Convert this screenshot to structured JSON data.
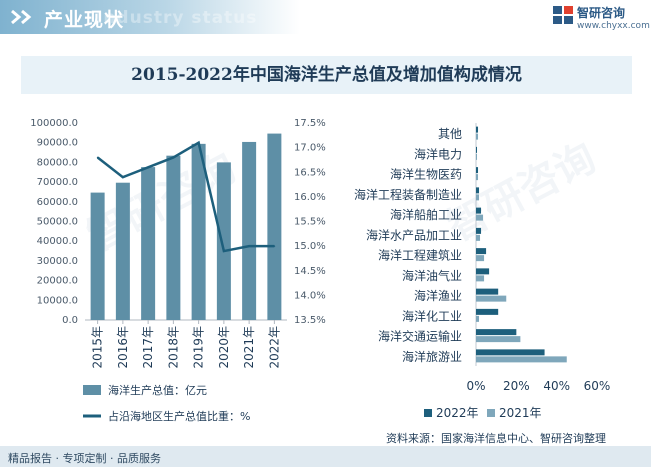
{
  "header": {
    "title": "产业现状",
    "ghost": "Industry status"
  },
  "brand": {
    "name": "智研咨询",
    "url": "www.chyxx.com"
  },
  "title": "2015-2022年中国海洋生产总值及增加值构成情况",
  "source": "资料来源：国家海洋信息中心、智研咨询整理",
  "footer": "精品报告 · 专项定制 · 品质服务",
  "watermark": "智研咨询",
  "colors": {
    "bar": "#5e8fa6",
    "line": "#1d5f7c",
    "series2022": "#1d5f7c",
    "series2021": "#7fa7bb"
  },
  "chart_data": [
    {
      "type": "bar+line",
      "categories": [
        "2015年",
        "2016年",
        "2017年",
        "2018年",
        "2019年",
        "2020年",
        "2021年",
        "2022年"
      ],
      "series": [
        {
          "name": "海洋生产总值：亿元",
          "type": "bar",
          "axis": "left",
          "values": [
            64669,
            69694,
            77611,
            83415,
            89415,
            80010,
            90385,
            94628
          ]
        },
        {
          "name": "占沿海地区生产总值比重：%",
          "type": "line",
          "axis": "right",
          "values": [
            16.8,
            16.4,
            16.6,
            16.8,
            17.1,
            14.9,
            15.0,
            15.0
          ]
        }
      ],
      "y_left": {
        "min": 0,
        "max": 100000,
        "ticks": [
          "0.0",
          "10000.0",
          "20000.0",
          "30000.0",
          "40000.0",
          "50000.0",
          "60000.0",
          "70000.0",
          "80000.0",
          "90000.0",
          "100000.0"
        ]
      },
      "y_right": {
        "min": 13.5,
        "max": 17.5,
        "ticks": [
          "13.5%",
          "14.0%",
          "14.5%",
          "15.0%",
          "15.5%",
          "16.0%",
          "16.5%",
          "17.0%",
          "17.5%"
        ]
      },
      "legend_position": "bottom"
    },
    {
      "type": "bar",
      "orientation": "horizontal",
      "categories": [
        "其他",
        "海洋电力",
        "海洋生物医药",
        "海洋工程装备制造业",
        "海洋船舶工业",
        "海洋水产品加工业",
        "海洋工程建筑业",
        "海洋油气业",
        "海洋渔业",
        "海洋化工业",
        "海洋交通运输业",
        "海洋旅游业"
      ],
      "series": [
        {
          "name": "2022年",
          "values": [
            1.0,
            0.5,
            1.0,
            1.5,
            2.5,
            2.5,
            5.0,
            6.5,
            11.0,
            11.0,
            20.0,
            34.0
          ]
        },
        {
          "name": "2021年",
          "values": [
            1.0,
            0.5,
            1.0,
            1.5,
            3.5,
            2.0,
            4.0,
            4.0,
            15.0,
            1.5,
            22.0,
            45.0
          ]
        }
      ],
      "x_axis": {
        "min": 0,
        "max": 60,
        "ticks": [
          "0%",
          "20%",
          "40%",
          "60%"
        ]
      },
      "legend_position": "bottom"
    }
  ]
}
